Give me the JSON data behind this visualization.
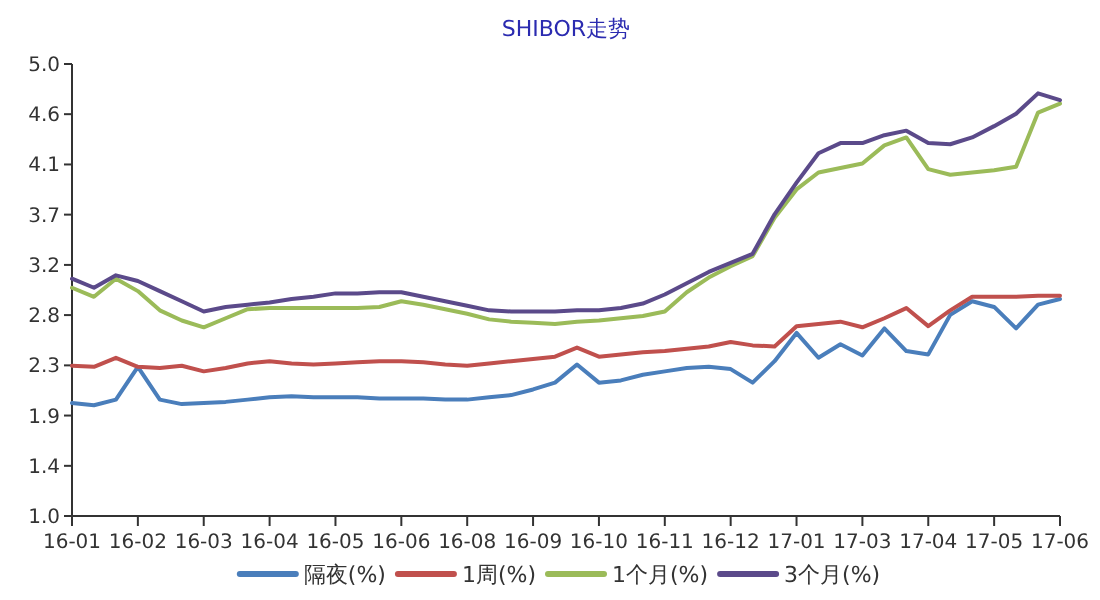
{
  "chart_data": {
    "type": "line",
    "title": "SHIBOR走势",
    "categories": [
      "16-01",
      null,
      null,
      "16-02",
      null,
      null,
      "16-03",
      null,
      null,
      "16-04",
      null,
      null,
      "16-05",
      null,
      null,
      "16-06",
      null,
      null,
      "16-08",
      null,
      null,
      "16-09",
      null,
      null,
      "16-10",
      null,
      null,
      "16-11",
      null,
      null,
      "16-12",
      null,
      null,
      "17-01",
      null,
      null,
      "17-03",
      null,
      null,
      "17-04",
      null,
      null,
      "17-05",
      null,
      null,
      "17-06"
    ],
    "ylim": [
      1,
      5
    ],
    "yticks": [
      {
        "value": 1,
        "label": "1.0"
      },
      {
        "value": 1.444,
        "label": "1.4"
      },
      {
        "value": 1.889,
        "label": "1.9"
      },
      {
        "value": 2.333,
        "label": "2.3"
      },
      {
        "value": 2.778,
        "label": "2.8"
      },
      {
        "value": 3.222,
        "label": "3.2"
      },
      {
        "value": 3.667,
        "label": "3.7"
      },
      {
        "value": 4.111,
        "label": "4.1"
      },
      {
        "value": 4.556,
        "label": "4.6"
      },
      {
        "value": 5,
        "label": "5.0"
      }
    ],
    "grid": false,
    "legend": "bottom",
    "marker": "none",
    "line_style": "solid",
    "series": [
      {
        "name": "隔夜(%)",
        "color": "#4a7ebb",
        "values": [
          2.0,
          1.98,
          2.03,
          2.32,
          2.03,
          1.99,
          2.0,
          2.01,
          2.03,
          2.05,
          2.06,
          2.05,
          2.05,
          2.05,
          2.04,
          2.04,
          2.04,
          2.03,
          2.03,
          2.05,
          2.07,
          2.12,
          2.18,
          2.34,
          2.18,
          2.2,
          2.25,
          2.28,
          2.31,
          2.32,
          2.3,
          2.18,
          2.37,
          2.62,
          2.4,
          2.52,
          2.42,
          2.66,
          2.46,
          2.43,
          2.78,
          2.9,
          2.85,
          2.66,
          2.87,
          2.92
        ]
      },
      {
        "name": "1周(%)",
        "color": "#c0504d",
        "values": [
          2.33,
          2.32,
          2.4,
          2.32,
          2.31,
          2.33,
          2.28,
          2.31,
          2.35,
          2.37,
          2.35,
          2.34,
          2.35,
          2.36,
          2.37,
          2.37,
          2.36,
          2.34,
          2.33,
          2.35,
          2.37,
          2.39,
          2.41,
          2.49,
          2.41,
          2.43,
          2.45,
          2.46,
          2.48,
          2.5,
          2.54,
          2.51,
          2.5,
          2.68,
          2.7,
          2.72,
          2.67,
          2.75,
          2.84,
          2.68,
          2.82,
          2.94,
          2.94,
          2.94,
          2.95,
          2.95
        ]
      },
      {
        "name": "1个月(%)",
        "color": "#9bbb59",
        "values": [
          3.02,
          2.94,
          3.1,
          2.99,
          2.82,
          2.73,
          2.67,
          2.75,
          2.83,
          2.84,
          2.84,
          2.84,
          2.84,
          2.84,
          2.85,
          2.9,
          2.87,
          2.83,
          2.79,
          2.74,
          2.72,
          2.71,
          2.7,
          2.72,
          2.73,
          2.75,
          2.77,
          2.81,
          2.98,
          3.11,
          3.21,
          3.3,
          3.64,
          3.89,
          4.04,
          4.08,
          4.12,
          4.28,
          4.35,
          4.07,
          4.02,
          4.04,
          4.06,
          4.09,
          4.57,
          4.65
        ]
      },
      {
        "name": "3个月(%)",
        "color": "#5b4a8a",
        "values": [
          3.1,
          3.02,
          3.13,
          3.08,
          2.99,
          2.9,
          2.81,
          2.85,
          2.87,
          2.89,
          2.92,
          2.94,
          2.97,
          2.97,
          2.98,
          2.98,
          2.94,
          2.9,
          2.86,
          2.82,
          2.81,
          2.81,
          2.81,
          2.82,
          2.82,
          2.84,
          2.88,
          2.96,
          3.06,
          3.16,
          3.24,
          3.32,
          3.67,
          3.95,
          4.21,
          4.3,
          4.3,
          4.37,
          4.41,
          4.3,
          4.29,
          4.35,
          4.45,
          4.56,
          4.74,
          4.68
        ]
      }
    ]
  }
}
